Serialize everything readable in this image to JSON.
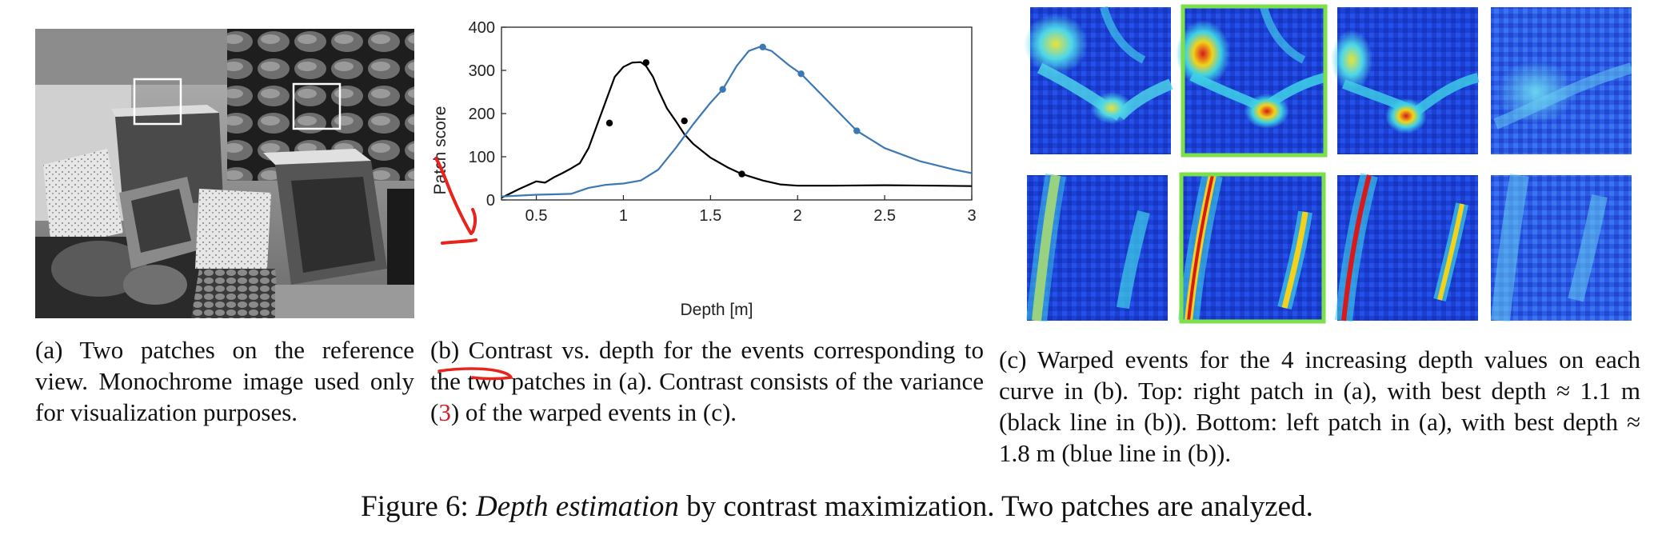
{
  "panel_a": {
    "caption_label": "(a)",
    "caption_text": "Two patches on the reference view.  Monochrome image used only for visualization purposes."
  },
  "panel_b": {
    "caption_label": "(b)",
    "caption_word": "Contrast",
    "caption_mid": " vs. depth for the events corresponding to the two patches in (a).  Contrast consists of the variance (",
    "caption_ref": "3",
    "caption_end": ") of the warped events in (c).",
    "annotation_color": "#e8231b"
  },
  "panel_c": {
    "caption_label": "(c)",
    "caption_text": "Warped events for the 4 increasing depth values on each curve in (b). Top: right patch in (a), with best depth ≈ 1.1 m (black line in (b)). Bottom: left patch in (a), with best depth ≈ 1.8 m (blue line in (b)).",
    "highlight_color": "#7be04a"
  },
  "figure_caption": {
    "prefix": "Figure 6: ",
    "emph": "Depth estimation",
    "rest": " by contrast maximization. Two patches are analyzed."
  },
  "chart_data": {
    "type": "line",
    "xlabel": "Depth [m]",
    "ylabel": "Patch score",
    "xlim": [
      0.3,
      3.0
    ],
    "ylim": [
      0,
      400
    ],
    "xticks": [
      0.5,
      1,
      1.5,
      2,
      2.5,
      3
    ],
    "xtick_labels": [
      "0.5",
      "1",
      "1.5",
      "2",
      "2.5",
      "3"
    ],
    "yticks": [
      0,
      100,
      200,
      300,
      400
    ],
    "ytick_labels": [
      "0",
      "100",
      "200",
      "300",
      "400"
    ],
    "grid": false,
    "series": [
      {
        "color": "#000000",
        "x": [
          0.3,
          0.4,
          0.5,
          0.55,
          0.6,
          0.65,
          0.7,
          0.75,
          0.8,
          0.85,
          0.9,
          0.95,
          1.0,
          1.05,
          1.1,
          1.13,
          1.17,
          1.2,
          1.25,
          1.3,
          1.35,
          1.4,
          1.5,
          1.6,
          1.68,
          1.8,
          1.9,
          2.0,
          2.2,
          2.5,
          2.8,
          3.0
        ],
        "y": [
          5,
          25,
          43,
          40,
          52,
          62,
          73,
          85,
          120,
          175,
          230,
          285,
          308,
          318,
          319,
          310,
          285,
          255,
          212,
          183,
          152,
          130,
          98,
          75,
          60,
          45,
          36,
          33,
          33,
          34,
          33,
          32
        ],
        "markers_x": [
          0.92,
          1.13,
          1.35,
          1.68
        ],
        "markers_y": [
          178,
          318,
          183,
          60
        ]
      },
      {
        "color": "#3c78b4",
        "x": [
          0.3,
          0.4,
          0.5,
          0.6,
          0.7,
          0.8,
          0.9,
          1.0,
          1.1,
          1.2,
          1.3,
          1.4,
          1.5,
          1.57,
          1.65,
          1.72,
          1.78,
          1.85,
          1.95,
          2.02,
          2.2,
          2.34,
          2.5,
          2.7,
          2.9,
          3.0
        ],
        "y": [
          8,
          10,
          12,
          13,
          14,
          28,
          35,
          38,
          45,
          70,
          120,
          175,
          225,
          256,
          310,
          345,
          354,
          345,
          312,
          292,
          218,
          160,
          120,
          90,
          70,
          62
        ],
        "markers_x": [
          1.57,
          1.8,
          2.02,
          2.34
        ],
        "markers_y": [
          256,
          354,
          292,
          160
        ]
      }
    ]
  }
}
